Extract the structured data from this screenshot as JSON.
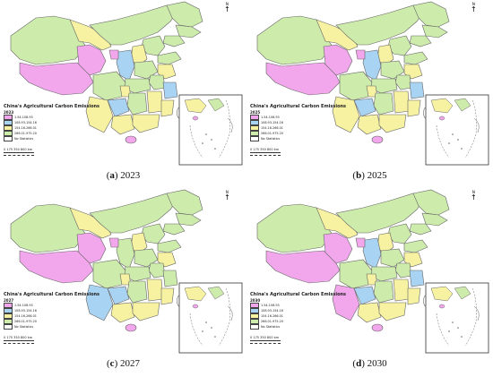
{
  "legend_title": "China's Agricultural Carbon Emissions",
  "legend_classes": [
    {
      "label": "1.54-108.93",
      "color": "#f2a6ec"
    },
    {
      "label": "108.93-154.16",
      "color": "#a9d3f2"
    },
    {
      "label": "154.16-266.01",
      "color": "#f7f2a1"
    },
    {
      "label": "266.01-975.20",
      "color": "#cdebab"
    },
    {
      "label": "No Statistics",
      "color": "#ffffff"
    }
  ],
  "north_label": "N",
  "scale_label": "0   175 350     800 km",
  "panels": [
    {
      "key": "a",
      "year_label": "2023",
      "tag": "a",
      "caption": "2023",
      "west": "#f2a6ec",
      "southwest": "#f7f2a1",
      "center": "#a9d3f2",
      "south": "#a9d3f2",
      "east": "#a9d3f2"
    },
    {
      "key": "b",
      "year_label": "2025",
      "tag": "b",
      "caption": "2025",
      "west": "#f2a6ec",
      "southwest": "#f7f2a1",
      "center": "#a9d3f2",
      "south": "#a9d3f2",
      "east": "#a9d3f2"
    },
    {
      "key": "c",
      "year_label": "2027",
      "tag": "c",
      "caption": "2027",
      "west": "#f2a6ec",
      "southwest": "#a9d3f2",
      "center": "#cdebab",
      "south": "#a9d3f2",
      "east": "#cdebab"
    },
    {
      "key": "d",
      "year_label": "2030",
      "tag": "d",
      "caption": "2030",
      "west": "#f2a6ec",
      "southwest": "#f2a6ec",
      "center": "#a9d3f2",
      "south": "#a9d3f2",
      "east": "#a9d3f2"
    }
  ]
}
